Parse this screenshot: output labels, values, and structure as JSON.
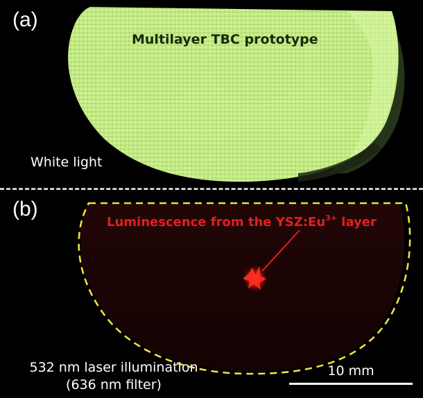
{
  "panel_a": {
    "label": "(a)",
    "title": "Multilayer TBC prototype",
    "caption": "White light"
  },
  "panel_b": {
    "label": "(b)",
    "annotation_main": "Luminescence from the YSZ:Eu",
    "annotation_sup": "3+",
    "annotation_tail": " layer",
    "caption_line1": "532 nm laser illumination",
    "caption_line2": "(636 nm filter)"
  },
  "scale_bar": {
    "label": "10 mm"
  },
  "colors": {
    "background": "#000000",
    "sample_green": "#c8f08a",
    "annotation_red": "#e02020",
    "outline_yellow": "#f0e040",
    "divider": "#cfcfcf",
    "text_white": "#ffffff",
    "title_dark": "#1a2a10"
  }
}
